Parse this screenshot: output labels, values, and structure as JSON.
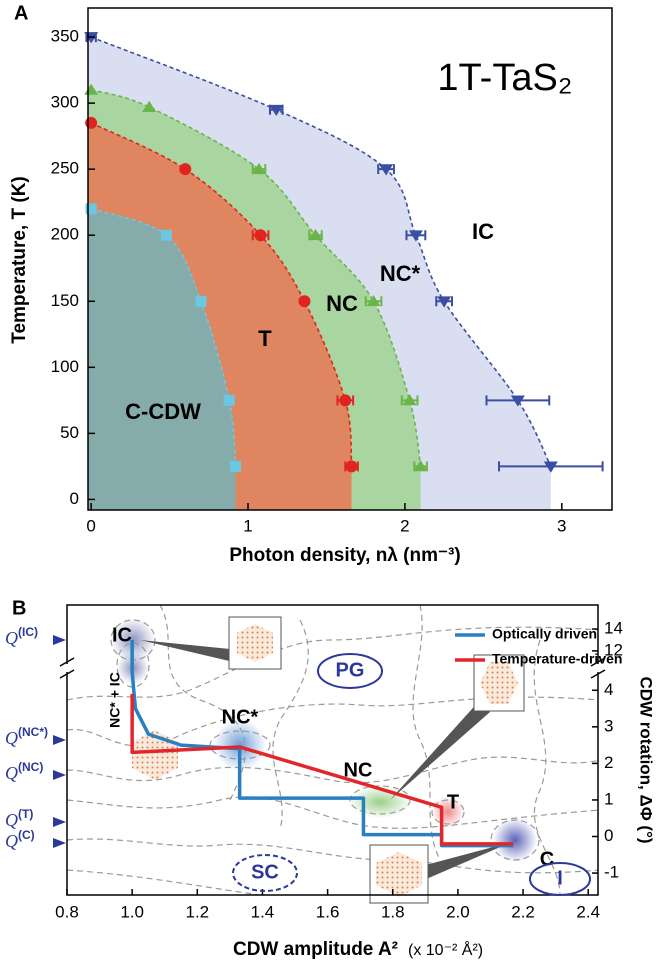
{
  "chart_data": [
    {
      "panel": "A",
      "type": "scatter",
      "title": "1T-TaS₂",
      "xlabel": "Photon density, nλ (nm⁻³)",
      "ylabel": "Temperature, T (K)",
      "xlim": [
        -0.02,
        3.32
      ],
      "ylim": [
        -8,
        372
      ],
      "xticks": [
        0,
        1,
        2,
        3
      ],
      "yticks": [
        0,
        50,
        100,
        150,
        200,
        250,
        300,
        350
      ],
      "series": [
        {
          "color": "#3a4ea3",
          "fill": "#dadef1",
          "marker": "triangle-down",
          "x": [
            0,
            1.18,
            1.88,
            2.07,
            2.25,
            2.72,
            2.93
          ],
          "values": [
            350,
            295,
            250,
            200,
            150,
            75,
            25
          ],
          "xerr": [
            0.03,
            0.04,
            0.05,
            0.06,
            0.05,
            0.2,
            0.33
          ]
        },
        {
          "color": "#6ab54a",
          "fill": "#a9d6a0",
          "marker": "triangle-up",
          "x": [
            0,
            0.37,
            1.07,
            1.43,
            1.8,
            2.03,
            2.1
          ],
          "values": [
            310,
            297,
            250,
            200,
            150,
            75,
            25
          ],
          "xerr": [
            0,
            0,
            0.04,
            0.04,
            0.05,
            0.05,
            0.04
          ]
        },
        {
          "color": "#e3231f",
          "fill": "#df8560",
          "marker": "circle",
          "x": [
            0,
            0.6,
            1.08,
            1.36,
            1.62,
            1.66
          ],
          "values": [
            285,
            250,
            200,
            150,
            75,
            25
          ],
          "xerr": [
            0,
            0,
            0.05,
            0,
            0.05,
            0.04
          ]
        },
        {
          "color": "#6cc8e2",
          "fill": "#86abab",
          "marker": "square",
          "x": [
            0,
            0.48,
            0.7,
            0.88,
            0.92
          ],
          "values": [
            220,
            200,
            150,
            75,
            25
          ]
        }
      ],
      "annotations": [
        "IC",
        "NC*",
        "NC",
        "T",
        "C-CDW"
      ]
    },
    {
      "panel": "B",
      "type": "line",
      "xlabel": "CDW amplitude A²",
      "xlabel_unit": "(x 10⁻² Å²)",
      "y2label": "CDW rotation, ΔΦ (°)",
      "xlim": [
        0.8,
        2.43
      ],
      "y2lim": [
        -1.6,
        16.2
      ],
      "y2break": [
        4.5,
        10.8
      ],
      "xticks": [
        0.8,
        {
          "value": 1,
          "label": "1.0"
        },
        1.2,
        1.4,
        1.6,
        1.8,
        {
          "value": 2,
          "label": "2.0"
        },
        2.2,
        2.4
      ],
      "y2ticks": [
        -1,
        0,
        1,
        2,
        3,
        4,
        12,
        14
      ],
      "legend": "upper right",
      "series": [
        {
          "name": "Optically driven",
          "color": "#2a7fc1",
          "axis": "y2",
          "x": [
            1.0,
            1.0,
            1.01,
            1.05,
            1.15,
            1.33,
            1.33,
            1.71,
            1.71,
            1.95,
            1.95,
            2.17
          ],
          "values": [
            13,
            4.5,
            3.5,
            2.8,
            2.5,
            2.4,
            1.05,
            1.05,
            0.05,
            0.05,
            -0.25,
            -0.25
          ]
        },
        {
          "name": "Temperature-driven",
          "color": "#e3262b",
          "axis": "y2",
          "x": [
            1.0,
            1.0,
            1.33,
            1.95,
            1.95,
            2.17
          ],
          "values": [
            3.9,
            2.3,
            2.45,
            0.8,
            -0.2,
            -0.2
          ]
        }
      ],
      "state_labels": [
        {
          "symbol": "Q",
          "sup": "(IC)"
        },
        {
          "symbol": "Q",
          "sup": "(NC*)"
        },
        {
          "symbol": "Q",
          "sup": "(NC)"
        },
        {
          "symbol": "Q",
          "sup": "(T)"
        },
        {
          "symbol": "Q",
          "sup": "(C)"
        }
      ],
      "annotations": [
        "IC",
        "NC* + IC",
        "NC*",
        "NC",
        "T",
        "C",
        "PG",
        "SC",
        "I"
      ]
    }
  ]
}
